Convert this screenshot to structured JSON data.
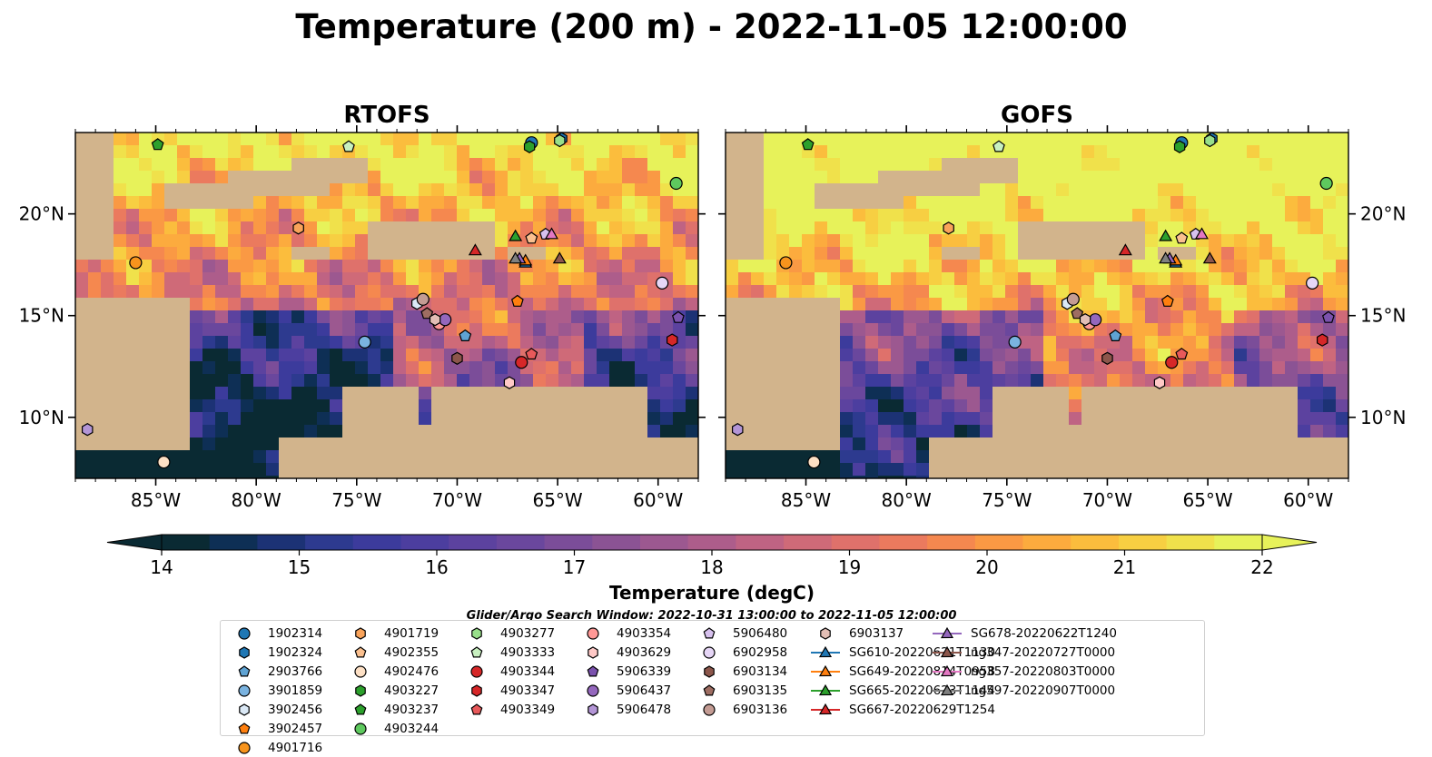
{
  "suptitle": "Temperature (200 m) - 2022-11-05 12:00:00",
  "panels": [
    {
      "title": "RTOFS"
    },
    {
      "title": "GOFS"
    }
  ],
  "colorbar": {
    "label": "Temperature (degC)",
    "ticks": [
      "14",
      "15",
      "16",
      "17",
      "18",
      "19",
      "20",
      "21",
      "22"
    ],
    "extend": "both",
    "colors": [
      "#0a2a33",
      "#0e2f55",
      "#1c3275",
      "#2d3a8f",
      "#3c3b9c",
      "#4c3e9f",
      "#5c429f",
      "#6a479d",
      "#7b4d99",
      "#8b5394",
      "#9c5890",
      "#ad5d8b",
      "#bf6383",
      "#cf6a78",
      "#df716b",
      "#eb7a5e",
      "#f5884f",
      "#fa9944",
      "#fcab3e",
      "#fbbd3d",
      "#f7cf42",
      "#f0e14b",
      "#e7f25a"
    ]
  },
  "legend_title": "Glider/Argo Search Window: 2022-10-31 13:00:00 to 2022-11-05 12:00:00",
  "chart_data": [
    {
      "type": "heatmap",
      "title": "RTOFS",
      "variable": "Temperature (200 m)",
      "units": "degC",
      "color_range": [
        14,
        22
      ],
      "xlim": [
        -89,
        -58
      ],
      "ylim": [
        7,
        24
      ],
      "x_ticks": [
        "85°W",
        "80°W",
        "75°W",
        "70°W",
        "65°W",
        "60°W"
      ],
      "y_ticks": [
        "10°N",
        "15°N",
        "20°N"
      ]
    },
    {
      "type": "heatmap",
      "title": "GOFS",
      "variable": "Temperature (200 m)",
      "units": "degC",
      "color_range": [
        14,
        22
      ],
      "xlim": [
        -89,
        -58
      ],
      "ylim": [
        7,
        24
      ],
      "x_ticks": [
        "85°W",
        "80°W",
        "75°W",
        "70°W",
        "65°W",
        "60°W"
      ],
      "y_ticks": [
        "10°N",
        "15°N",
        "20°N"
      ]
    }
  ],
  "platforms": [
    {
      "id": "1902314",
      "marker": "circle",
      "color": "#1f77b4",
      "lon": -66.3,
      "lat": 23.5
    },
    {
      "id": "1902324",
      "marker": "hexagon",
      "color": "#1f77b4",
      "lon": -64.8,
      "lat": 23.7
    },
    {
      "id": "2903766",
      "marker": "pentagon",
      "color": "#5fa3d3",
      "lon": -69.6,
      "lat": 14.0
    },
    {
      "id": "3901859",
      "marker": "circle",
      "color": "#7ab3e0",
      "lon": -74.6,
      "lat": 13.7
    },
    {
      "id": "3902456",
      "marker": "hexagon",
      "color": "#dbe9f6",
      "lon": -72.0,
      "lat": 15.6
    },
    {
      "id": "3902457",
      "marker": "pentagon",
      "color": "#ff7f0e",
      "lon": -67.0,
      "lat": 15.7
    },
    {
      "id": "4901716",
      "marker": "circle",
      "color": "#f7941d",
      "lon": -86.0,
      "lat": 17.6
    },
    {
      "id": "4901719",
      "marker": "hexagon",
      "color": "#f9a35a",
      "lon": -77.9,
      "lat": 19.3
    },
    {
      "id": "4902355",
      "marker": "pentagon",
      "color": "#fbc08f",
      "lon": -66.3,
      "lat": 18.8
    },
    {
      "id": "4902476",
      "marker": "circle",
      "color": "#fde0c5",
      "lon": -84.6,
      "lat": 7.8
    },
    {
      "id": "4903227",
      "marker": "hexagon",
      "color": "#2ca02c",
      "lon": -66.4,
      "lat": 23.3
    },
    {
      "id": "4903237",
      "marker": "pentagon",
      "color": "#2ca02c",
      "lon": -84.9,
      "lat": 23.4
    },
    {
      "id": "4903244",
      "marker": "circle",
      "color": "#5ec95e",
      "lon": -59.1,
      "lat": 21.5
    },
    {
      "id": "4903277",
      "marker": "hexagon",
      "color": "#98df8a",
      "lon": -64.9,
      "lat": 23.6
    },
    {
      "id": "4903333",
      "marker": "pentagon",
      "color": "#c8f0c0",
      "lon": -75.4,
      "lat": 23.3
    },
    {
      "id": "4903344",
      "marker": "circle",
      "color": "#d62728",
      "lon": -66.8,
      "lat": 12.7
    },
    {
      "id": "4903347",
      "marker": "hexagon",
      "color": "#d62728",
      "lon": -59.3,
      "lat": 13.8
    },
    {
      "id": "4903349",
      "marker": "pentagon",
      "color": "#e8595a",
      "lon": -66.3,
      "lat": 13.1
    },
    {
      "id": "4903354",
      "marker": "circle",
      "color": "#ff9896",
      "lon": -70.9,
      "lat": 14.6
    },
    {
      "id": "4903629",
      "marker": "hexagon",
      "color": "#ffc9c7",
      "lon": -67.4,
      "lat": 11.7
    },
    {
      "id": "5906339",
      "marker": "pentagon",
      "color": "#7b52ae",
      "lon": -59.0,
      "lat": 14.9
    },
    {
      "id": "5906437",
      "marker": "circle",
      "color": "#9467bd",
      "lon": -70.6,
      "lat": 14.8
    },
    {
      "id": "5906478",
      "marker": "hexagon",
      "color": "#b395d6",
      "lon": -88.4,
      "lat": 9.4
    },
    {
      "id": "5906480",
      "marker": "pentagon",
      "color": "#d7c1ee",
      "lon": -65.6,
      "lat": 19.0
    },
    {
      "id": "6902958",
      "marker": "circle",
      "color": "#e6d6f6",
      "lon": -59.8,
      "lat": 16.6
    },
    {
      "id": "6903134",
      "marker": "hexagon",
      "color": "#8c564b",
      "lon": -70.0,
      "lat": 12.9
    },
    {
      "id": "6903135",
      "marker": "pentagon",
      "color": "#9e6d62",
      "lon": -71.5,
      "lat": 15.1
    },
    {
      "id": "6903136",
      "marker": "circle",
      "color": "#c49c94",
      "lon": -71.7,
      "lat": 15.8
    },
    {
      "id": "6903137",
      "marker": "hexagon",
      "color": "#e2beb5",
      "lon": -71.1,
      "lat": 14.8
    },
    {
      "id": "SG610-20220621T1130",
      "marker": "triangle",
      "color": "#1f77b4",
      "line": true,
      "lon": -66.6,
      "lat": 17.6
    },
    {
      "id": "SG649-20220814T0958",
      "marker": "triangle",
      "color": "#ff7f0e",
      "line": true,
      "lon": -66.6,
      "lat": 17.7
    },
    {
      "id": "SG665-20220623T1144",
      "marker": "triangle",
      "color": "#2ca02c",
      "line": true,
      "lon": -67.1,
      "lat": 18.9
    },
    {
      "id": "SG667-20220629T1254",
      "marker": "triangle",
      "color": "#d62728",
      "line": true,
      "lon": -69.1,
      "lat": 18.2
    },
    {
      "id": "SG678-20220622T1240",
      "marker": "triangle",
      "color": "#9467bd",
      "line": true,
      "lon": -66.9,
      "lat": 17.8
    },
    {
      "id": "ng347-20220727T0000",
      "marker": "triangle",
      "color": "#8c564b",
      "line": true,
      "lon": -64.9,
      "lat": 17.8
    },
    {
      "id": "ng357-20220803T0000",
      "marker": "triangle",
      "color": "#e377c2",
      "line": true,
      "lon": -65.3,
      "lat": 19.0
    },
    {
      "id": "ng597-20220907T0000",
      "marker": "triangle",
      "color": "#7f7f7f",
      "line": true,
      "lon": -67.1,
      "lat": 17.8
    }
  ]
}
